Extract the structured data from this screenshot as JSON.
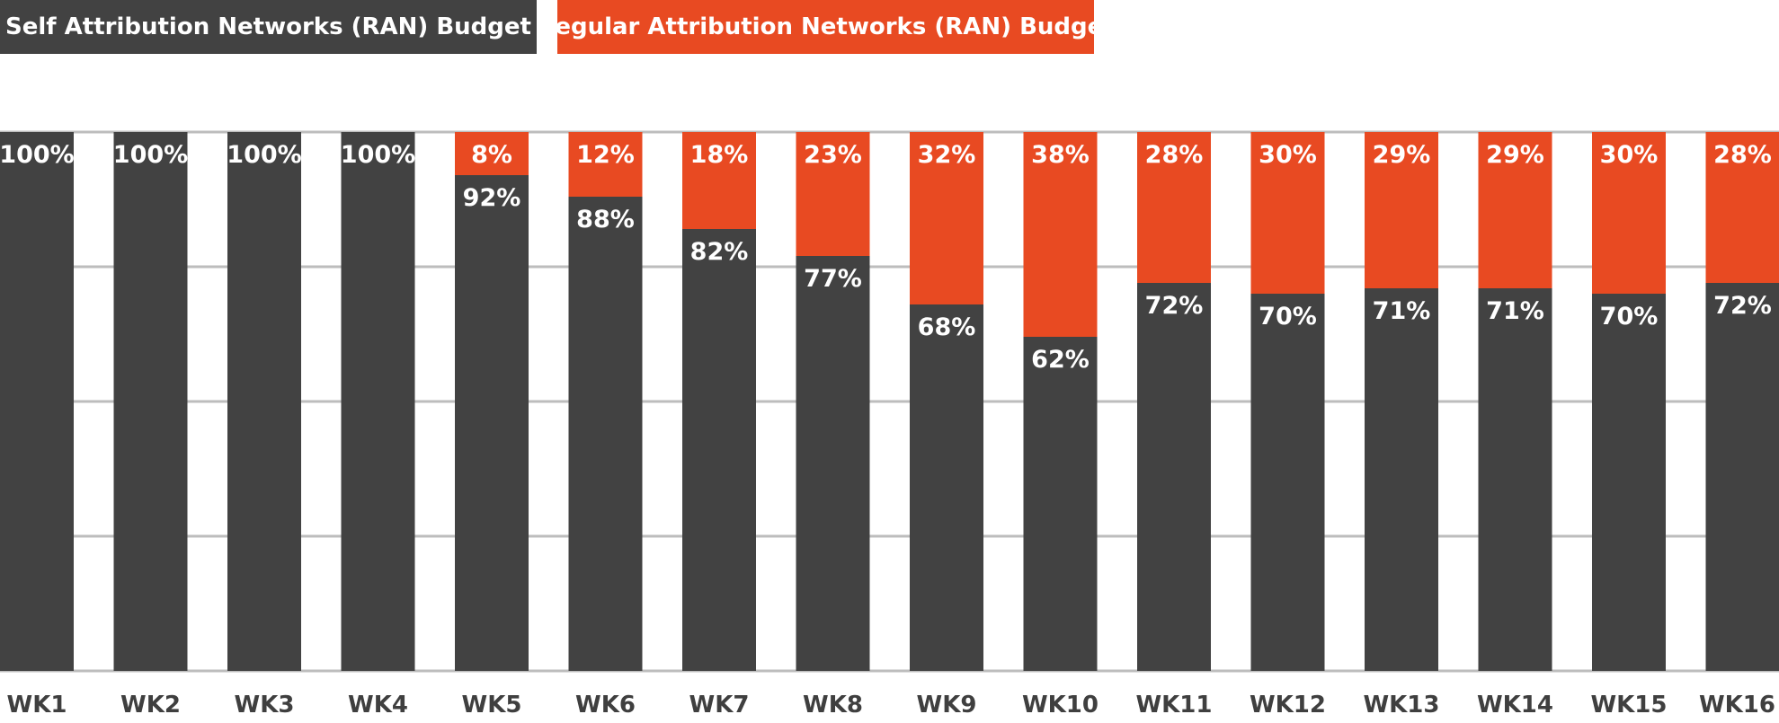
{
  "legend": {
    "self_label": "Self Attribution Networks (RAN) Budget",
    "regular_label": "Regular Attribution Networks (RAN) Budget"
  },
  "colors": {
    "self": "#424242",
    "regular": "#e84a22",
    "grid": "#bdbdbd",
    "tick_text": "#3f3f3f"
  },
  "chart_data": {
    "type": "bar",
    "stacked": true,
    "categories": [
      "WK1",
      "WK2",
      "WK3",
      "WK4",
      "WK5",
      "WK6",
      "WK7",
      "WK8",
      "WK9",
      "WK10",
      "WK11",
      "WK12",
      "WK13",
      "WK14",
      "WK15",
      "WK16"
    ],
    "series": [
      {
        "name": "Self Attribution Networks (RAN) Budget",
        "values": [
          100,
          100,
          100,
          100,
          92,
          88,
          82,
          77,
          68,
          62,
          72,
          70,
          71,
          71,
          70,
          72
        ],
        "labels": [
          "100%",
          "100%",
          "100%",
          "100%",
          "92%",
          "88%",
          "82%",
          "77%",
          "68%",
          "62%",
          "72%",
          "70%",
          "71%",
          "71%",
          "70%",
          "72%"
        ]
      },
      {
        "name": "Regular Attribution Networks (RAN) Budget",
        "values": [
          0,
          0,
          0,
          0,
          8,
          12,
          18,
          23,
          32,
          38,
          28,
          30,
          29,
          29,
          30,
          28
        ],
        "labels": [
          "",
          "",
          "",
          "",
          "8%",
          "12%",
          "18%",
          "23%",
          "32%",
          "38%",
          "28%",
          "30%",
          "29%",
          "29%",
          "30%",
          "28%"
        ]
      }
    ],
    "ylim": [
      0,
      100
    ],
    "grid": true,
    "legend_position": "top-left"
  }
}
